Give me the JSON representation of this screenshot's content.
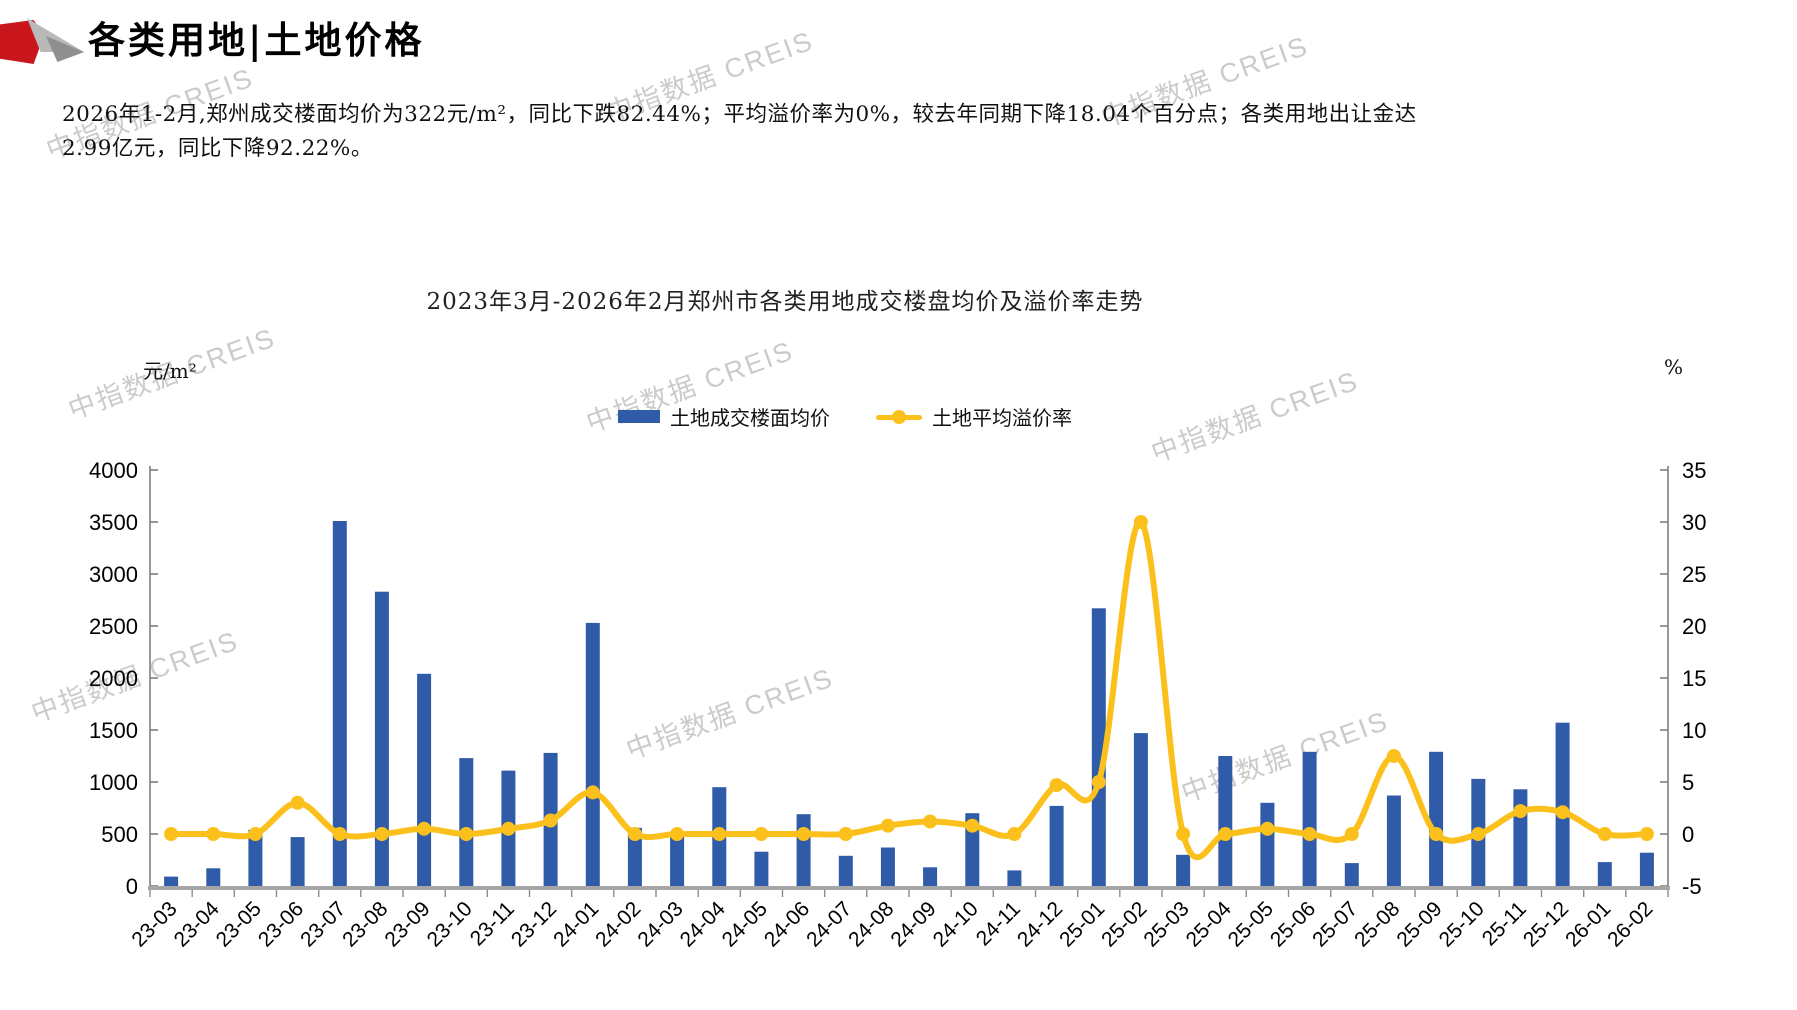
{
  "header": {
    "title": "各类用地|土地价格"
  },
  "summary_lines": [
    "2026年1-2月,郑州成交楼面均价为322元/m²，同比下跌82.44%；平均溢价率为0%，较去年同期下降18.04个百分点；各类用地出让金达",
    "2.99亿元，同比下降92.22%。"
  ],
  "watermark": "中指数据 CREIS",
  "colors": {
    "bar_blue": "#2F5BA8",
    "line_yellow": "#FBC01B",
    "logo_red": "#C9161D",
    "axis_gray": "#7f7f7f",
    "baseline_gray": "#a6a6a6",
    "watermark_gray": "#cbcbcb"
  },
  "chart_data": {
    "type": "bar",
    "title": "2023年3月-2026年2月郑州市各类用地成交楼盘均价及溢价率走势",
    "categories": [
      "23-03",
      "23-04",
      "23-05",
      "23-06",
      "23-07",
      "23-08",
      "23-09",
      "23-10",
      "23-11",
      "23-12",
      "24-01",
      "24-02",
      "24-03",
      "24-04",
      "24-05",
      "24-06",
      "24-07",
      "24-08",
      "24-09",
      "24-10",
      "24-11",
      "24-12",
      "25-01",
      "25-02",
      "25-03",
      "25-04",
      "25-05",
      "25-06",
      "25-07",
      "25-08",
      "25-09",
      "25-10",
      "25-11",
      "25-12",
      "26-01",
      "26-02"
    ],
    "series": [
      {
        "name": "土地成交楼面均价",
        "type": "bar",
        "axis": "left",
        "color": "#2F5BA8",
        "values": [
          90,
          170,
          540,
          470,
          3510,
          2830,
          2040,
          1230,
          1110,
          1280,
          2530,
          560,
          480,
          950,
          330,
          690,
          290,
          370,
          180,
          700,
          150,
          770,
          2670,
          1470,
          300,
          1250,
          800,
          1290,
          220,
          870,
          1290,
          1030,
          930,
          1570,
          230,
          320
        ]
      },
      {
        "name": "土地平均溢价率",
        "type": "line",
        "axis": "right",
        "color": "#FBC01B",
        "values": [
          0,
          0,
          0,
          3,
          0,
          0,
          0.5,
          0,
          0.5,
          1.3,
          4,
          0,
          0,
          0,
          0,
          0,
          0,
          0.8,
          1.2,
          0.8,
          0,
          4.7,
          5,
          30,
          0,
          0,
          0.5,
          0,
          0,
          7.5,
          0,
          0,
          2.2,
          2.1,
          0,
          0
        ]
      }
    ],
    "left_axis": {
      "unit": "元/m²",
      "min": 0,
      "max": 4000,
      "step": 500
    },
    "right_axis": {
      "unit": "%",
      "min": -5,
      "max": 35,
      "step": 5
    },
    "legend_position": "top",
    "grid": false
  }
}
